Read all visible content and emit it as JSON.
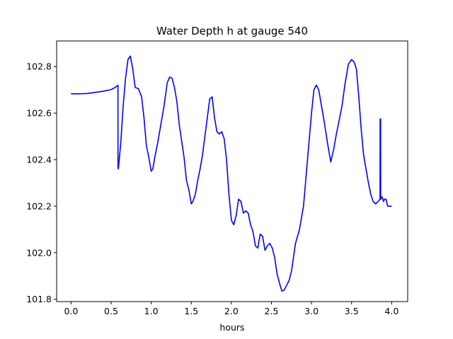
{
  "chart_data": {
    "type": "line",
    "title": "Water Depth h at gauge 540",
    "xlabel": "hours",
    "ylabel": "",
    "xlim": [
      -0.18,
      4.2
    ],
    "ylim": [
      101.79,
      102.91
    ],
    "x_ticks": [
      0.0,
      0.5,
      1.0,
      1.5,
      2.0,
      2.5,
      3.0,
      3.5,
      4.0
    ],
    "x_tick_labels": [
      "0.0",
      "0.5",
      "1.0",
      "1.5",
      "2.0",
      "2.5",
      "3.0",
      "3.5",
      "4.0"
    ],
    "y_ticks": [
      101.8,
      102.0,
      102.2,
      102.4,
      102.6,
      102.8
    ],
    "y_tick_labels": [
      "101.8",
      "102.0",
      "102.2",
      "102.4",
      "102.6",
      "102.8"
    ],
    "grid": false,
    "legend": "none",
    "series": [
      {
        "color": "#0000ff",
        "x": [
          0.0,
          0.1,
          0.2,
          0.3,
          0.4,
          0.5,
          0.55,
          0.585,
          0.586,
          0.59,
          0.62,
          0.65,
          0.68,
          0.71,
          0.74,
          0.77,
          0.8,
          0.84,
          0.88,
          0.91,
          0.94,
          0.97,
          1.0,
          1.02,
          1.05,
          1.08,
          1.12,
          1.16,
          1.2,
          1.23,
          1.26,
          1.29,
          1.32,
          1.35,
          1.38,
          1.41,
          1.44,
          1.47,
          1.5,
          1.52,
          1.55,
          1.58,
          1.61,
          1.64,
          1.67,
          1.7,
          1.73,
          1.76,
          1.79,
          1.82,
          1.85,
          1.88,
          1.91,
          1.94,
          1.97,
          2.0,
          2.03,
          2.06,
          2.09,
          2.12,
          2.15,
          2.18,
          2.21,
          2.24,
          2.27,
          2.3,
          2.33,
          2.36,
          2.39,
          2.42,
          2.45,
          2.48,
          2.51,
          2.54,
          2.57,
          2.6,
          2.63,
          2.66,
          2.69,
          2.72,
          2.75,
          2.8,
          2.85,
          2.9,
          2.95,
          3.0,
          3.03,
          3.06,
          3.09,
          3.12,
          3.16,
          3.2,
          3.24,
          3.28,
          3.31,
          3.34,
          3.38,
          3.42,
          3.46,
          3.5,
          3.53,
          3.56,
          3.59,
          3.62,
          3.65,
          3.68,
          3.71,
          3.74,
          3.77,
          3.8,
          3.83,
          3.855,
          3.856,
          3.862,
          3.863,
          3.88,
          3.9,
          3.91,
          3.93,
          3.95,
          3.96,
          3.98,
          4.0
        ],
        "y": [
          102.683,
          102.683,
          102.684,
          102.689,
          102.694,
          102.701,
          102.71,
          102.72,
          102.37,
          102.36,
          102.47,
          102.63,
          102.75,
          102.83,
          102.845,
          102.79,
          102.71,
          102.705,
          102.67,
          102.58,
          102.46,
          102.41,
          102.35,
          102.36,
          102.42,
          102.47,
          102.55,
          102.63,
          102.73,
          102.755,
          102.75,
          102.71,
          102.65,
          102.55,
          102.48,
          102.41,
          102.31,
          102.27,
          102.21,
          102.22,
          102.25,
          102.31,
          102.36,
          102.42,
          102.5,
          102.58,
          102.66,
          102.67,
          102.58,
          102.52,
          102.51,
          102.52,
          102.49,
          102.4,
          102.25,
          102.14,
          102.12,
          102.16,
          102.23,
          102.22,
          102.17,
          102.18,
          102.17,
          102.12,
          102.09,
          102.03,
          102.02,
          102.08,
          102.07,
          102.01,
          102.03,
          102.04,
          102.02,
          101.98,
          101.91,
          101.87,
          101.835,
          101.84,
          101.86,
          101.88,
          101.92,
          102.04,
          102.1,
          102.2,
          102.4,
          102.6,
          102.7,
          102.72,
          102.7,
          102.64,
          102.56,
          102.47,
          102.39,
          102.45,
          102.51,
          102.56,
          102.63,
          102.73,
          102.81,
          102.83,
          102.82,
          102.79,
          102.67,
          102.53,
          102.42,
          102.36,
          102.3,
          102.25,
          102.22,
          102.21,
          102.22,
          102.23,
          102.575,
          102.575,
          102.23,
          102.24,
          102.22,
          102.23,
          102.23,
          102.2,
          102.2,
          102.2,
          102.2
        ]
      }
    ]
  }
}
